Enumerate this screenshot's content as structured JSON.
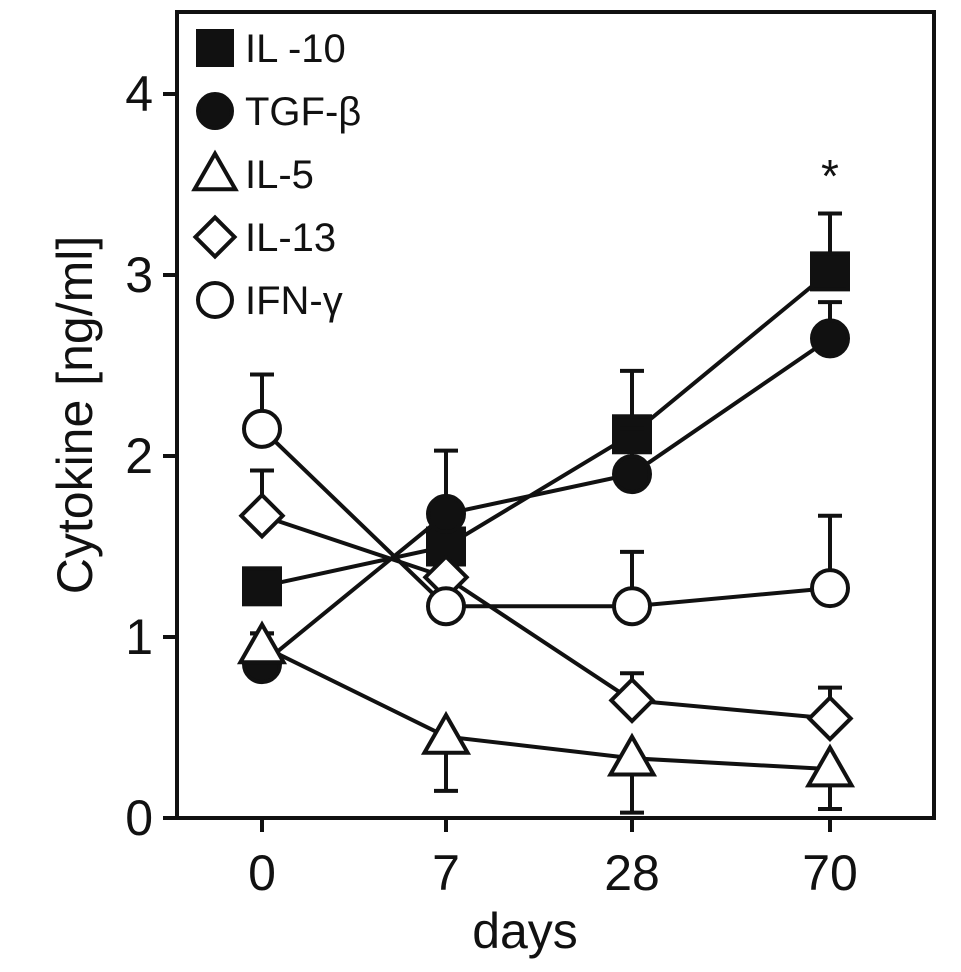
{
  "chart_data": {
    "type": "line",
    "title": "",
    "xlabel": "days",
    "ylabel": "Cytokine [ng/ml]",
    "categories": [
      "0",
      "7",
      "28",
      "70"
    ],
    "ylim": [
      0,
      4.5
    ],
    "yticks": [
      "0",
      "1",
      "2",
      "3",
      "4"
    ],
    "grid": false,
    "legend_position": "top-left",
    "annotations": [
      {
        "text": "*",
        "x": "70"
      }
    ],
    "series": [
      {
        "name": "IL -10",
        "marker": "square",
        "fill": "#111111",
        "values": [
          1.28,
          1.5,
          2.12,
          3.02
        ],
        "err": [
          0,
          0.22,
          0.35,
          0.32
        ]
      },
      {
        "name": "TGF-β",
        "marker": "circle",
        "fill": "#111111",
        "values": [
          0.85,
          1.68,
          1.9,
          2.65
        ],
        "err": [
          0.17,
          0.35,
          0.25,
          0.2
        ]
      },
      {
        "name": "IL-5",
        "marker": "triangle",
        "fill": "#ffffff",
        "values": [
          0.95,
          0.45,
          0.33,
          0.27
        ],
        "err": [
          0.07,
          0.3,
          0.3,
          0.22
        ]
      },
      {
        "name": "IL-13",
        "marker": "diamond",
        "fill": "#ffffff",
        "values": [
          1.67,
          1.33,
          0.65,
          0.55
        ],
        "err": [
          0.25,
          0.05,
          0.15,
          0.17
        ]
      },
      {
        "name": "IFN-γ",
        "marker": "circle",
        "fill": "#ffffff",
        "values": [
          2.15,
          1.17,
          1.17,
          1.27
        ],
        "err": [
          0.3,
          0.05,
          0.3,
          0.4
        ]
      }
    ]
  }
}
